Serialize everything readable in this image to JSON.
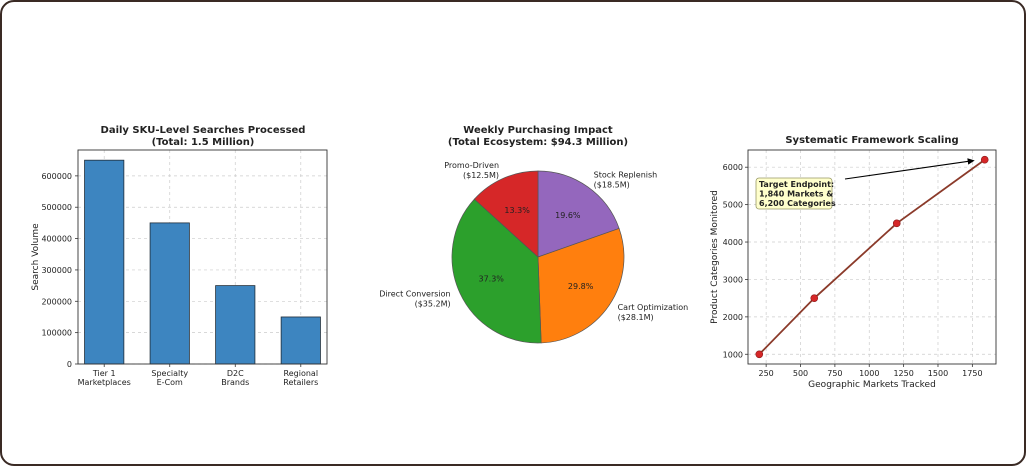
{
  "chart_data": [
    {
      "type": "bar",
      "title": "Daily SKU-Level Searches Processed",
      "subtitle": "(Total: 1.5 Million)",
      "xlabel": "",
      "ylabel": "Search Volume",
      "categories": [
        [
          "Tier 1",
          "Marketplaces"
        ],
        [
          "Specialty",
          "E-Com"
        ],
        [
          "D2C",
          "Brands"
        ],
        [
          "Regional",
          "Retailers"
        ]
      ],
      "values": [
        650000,
        450000,
        250000,
        150000
      ],
      "ylim": [
        0,
        682500
      ],
      "yticks": [
        0,
        100000,
        200000,
        300000,
        400000,
        500000,
        600000
      ],
      "color": "#3d85c0",
      "grid": true
    },
    {
      "type": "pie",
      "title": "Weekly Purchasing Impact",
      "subtitle": "(Total Ecosystem: $94.3 Million)",
      "slices": [
        {
          "label": "Stock Replenish",
          "amount": "($18.5M)",
          "value": 18.5,
          "pct": "19.6%",
          "color": "#9467bd"
        },
        {
          "label": "Cart Optimization",
          "amount": "($28.1M)",
          "value": 28.1,
          "pct": "29.8%",
          "color": "#ff7f0e"
        },
        {
          "label": "Direct Conversion",
          "amount": "($35.2M)",
          "value": 35.2,
          "pct": "37.3%",
          "color": "#2ca02c"
        },
        {
          "label": "Promo-Driven",
          "amount": "($12.5M)",
          "value": 12.5,
          "pct": "13.3%",
          "color": "#d62728"
        }
      ]
    },
    {
      "type": "line",
      "title": "Systematic Framework Scaling",
      "xlabel": "Geographic Markets Tracked",
      "ylabel": "Product Categories Monitored",
      "x": [
        200,
        600,
        1200,
        1840
      ],
      "y": [
        1000,
        2500,
        4500,
        6200
      ],
      "xlim": [
        118,
        1922
      ],
      "ylim": [
        740,
        6460
      ],
      "xticks": [
        250,
        500,
        750,
        1000,
        1250,
        1500,
        1750
      ],
      "yticks": [
        1000,
        2000,
        3000,
        4000,
        5000,
        6000
      ],
      "line_color": "#8b3a2a",
      "marker_color": "#d62728",
      "grid": true,
      "annotation": {
        "lines": [
          "Target Endpoint:",
          "1,840 Markets &",
          "6,200 Categories"
        ],
        "box_color": "#ffffcc",
        "target": [
          1840,
          6200
        ]
      }
    }
  ]
}
